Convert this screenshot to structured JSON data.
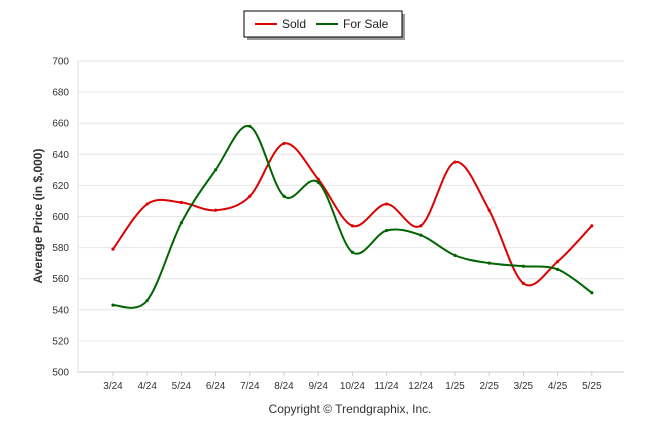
{
  "chart_data": {
    "type": "line",
    "categories": [
      "3/24",
      "4/24",
      "5/24",
      "6/24",
      "7/24",
      "8/24",
      "9/24",
      "10/24",
      "11/24",
      "12/24",
      "1/25",
      "2/25",
      "3/25",
      "4/25",
      "5/25"
    ],
    "series": [
      {
        "name": "Sold",
        "color": "#dd0000",
        "values": [
          579,
          608,
          609,
          604,
          613,
          647,
          624,
          594,
          608,
          594,
          635,
          604,
          557,
          571,
          594
        ]
      },
      {
        "name": "For Sale",
        "color": "#006400",
        "values": [
          543,
          546,
          596,
          630,
          658,
          613,
          622,
          577,
          591,
          588,
          575,
          570,
          568,
          566,
          551
        ]
      }
    ],
    "yticks": [
      500,
      520,
      540,
      560,
      580,
      600,
      620,
      640,
      660,
      680,
      700
    ],
    "ylim": [
      500,
      700
    ],
    "ylabel": "Average Price (in $,000)",
    "xlabel": "",
    "grid": true,
    "legend_position": "top-center",
    "footer": "Copyright © Trendgraphix, Inc."
  }
}
